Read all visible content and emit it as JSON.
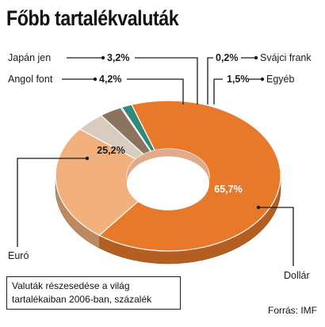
{
  "title": "Főbb tartalékvaluták",
  "note": "Valuták részesedése a világ tartalékaiban 2006-ban, százalék",
  "source": "Forrás: IMF",
  "chart_data": {
    "type": "pie",
    "donut": true,
    "unit": "%",
    "slices": [
      {
        "name": "Dollár",
        "value": 65.7,
        "label": "65,7%",
        "color": "#e8782a"
      },
      {
        "name": "Euró",
        "value": 25.2,
        "label": "25,2%",
        "color": "#f2b07c"
      },
      {
        "name": "Angol font",
        "value": 4.2,
        "label": "4,2%",
        "color": "#d9cbbd"
      },
      {
        "name": "Japán jen",
        "value": 3.2,
        "label": "3,2%",
        "color": "#8a7460"
      },
      {
        "name": "Svájci frank",
        "value": 0.2,
        "label": "0,2%",
        "color": "#5a5a5a"
      },
      {
        "name": "Egyéb",
        "value": 1.5,
        "label": "1,5%",
        "color": "#2f8a7a"
      }
    ]
  }
}
